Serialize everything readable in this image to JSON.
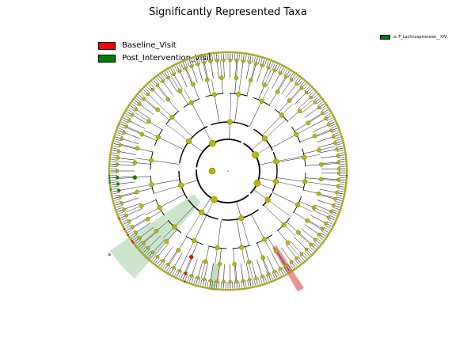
{
  "title": "Significantly Represented Taxa",
  "legend": [
    {
      "label": "Baseline_Visit",
      "color": "#ff0000"
    },
    {
      "label": "Post_Intervention_Visit",
      "color": "#008000"
    }
  ],
  "side_legend": {
    "label": "a: F_Lachnospiraceae__XIV",
    "color": "#008000"
  },
  "highlight_label": "a",
  "colors": {
    "node_default": "#b8b800",
    "node_stroke": "#606000",
    "baseline": "#ff0000",
    "post": "#008000",
    "post_clade_fill": "#b9dcb9",
    "baseline_clade_fill": "#e88080"
  },
  "chart_data": {
    "type": "cladogram",
    "levels": [
      "root",
      "phylum",
      "class",
      "order",
      "family",
      "genus",
      "species"
    ],
    "groups": [
      "Baseline_Visit",
      "Post_Intervention_Visit"
    ],
    "highlighted_taxa": [
      {
        "name": "F_Lachnospiraceae__XIV",
        "group": "Post_Intervention_Visit",
        "letter": "a"
      }
    ],
    "leaf_count": 320,
    "enriched_leaves": {
      "Baseline_Visit": [
        99,
        127,
        128,
        131,
        134,
        139
      ],
      "Post_Intervention_Visit": [
        2,
        152,
        155,
        156,
        157,
        158,
        232
      ]
    }
  }
}
